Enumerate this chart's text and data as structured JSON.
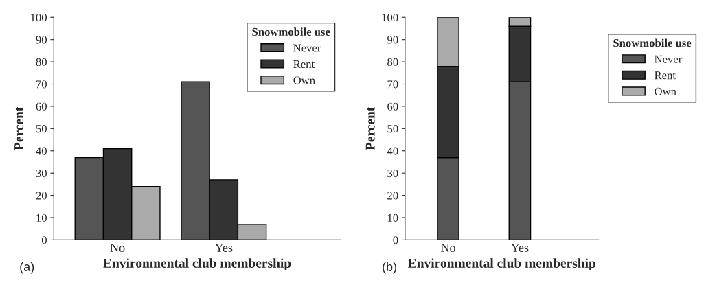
{
  "chart_data": [
    {
      "type": "bar",
      "xlabel": "Environmental club membership",
      "ylabel": "Percent",
      "legend_title": "Snowmobile use",
      "annotations": [
        "(a)"
      ],
      "categories": [
        "No",
        "Yes"
      ],
      "series": [
        {
          "name": "Never",
          "color": "#555555",
          "values": [
            37,
            71
          ]
        },
        {
          "name": "Rent",
          "color": "#333333",
          "values": [
            41,
            27
          ]
        },
        {
          "name": "Own",
          "color": "#aaaaaa",
          "values": [
            24,
            7
          ]
        }
      ],
      "ylim": [
        0,
        100
      ],
      "yticks": [
        0,
        10,
        20,
        30,
        40,
        50,
        60,
        70,
        80,
        90,
        100
      ],
      "grid": false,
      "legend": "top right"
    },
    {
      "type": "bar",
      "stacked": true,
      "xlabel": "Environmental club membership",
      "ylabel": "Percent",
      "legend_title": "Snowmobile use",
      "annotations": [
        "(b)"
      ],
      "categories": [
        "No",
        "Yes"
      ],
      "series": [
        {
          "name": "Never",
          "color": "#555555",
          "values": [
            37,
            71
          ]
        },
        {
          "name": "Rent",
          "color": "#333333",
          "values": [
            41,
            25
          ]
        },
        {
          "name": "Own",
          "color": "#aaaaaa",
          "values": [
            22,
            4
          ]
        }
      ],
      "ylim": [
        0,
        100
      ],
      "yticks": [
        0,
        10,
        20,
        30,
        40,
        50,
        60,
        70,
        80,
        90,
        100
      ],
      "grid": false,
      "legend": "right"
    }
  ]
}
